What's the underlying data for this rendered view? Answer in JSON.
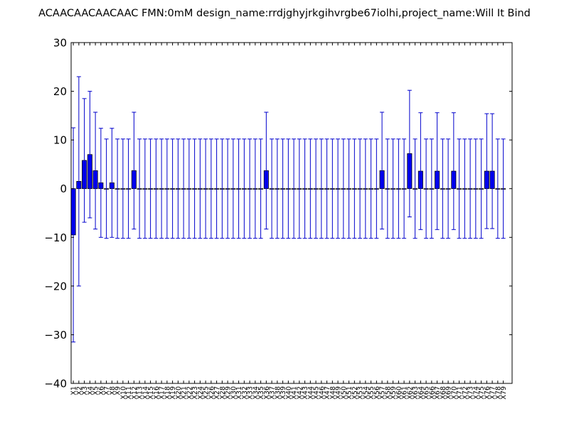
{
  "chart_data": {
    "type": "bar",
    "title": "ACAACAACAACAAC  FMN:0mM  design_name:rrdjghyjrkgihvrgbe67iolhi,project_name:Will It Bind",
    "xlabel": "",
    "ylabel": "",
    "ylim": [
      -40,
      30
    ],
    "yticks": [
      -40,
      -30,
      -20,
      -10,
      0,
      10,
      20,
      30
    ],
    "grid": false,
    "legend": "none",
    "colors": {
      "bar_fill": "#0000ff",
      "bar_edge": "#000000",
      "error": "#0000cc",
      "axes": "#000000"
    },
    "categories": [
      "X1",
      "X2",
      "X3",
      "X4",
      "X5",
      "X6",
      "X7",
      "X8",
      "X9",
      "X10",
      "X11",
      "X12",
      "X13",
      "X14",
      "X15",
      "X16",
      "X17",
      "X18",
      "X19",
      "X20",
      "X21",
      "X22",
      "X23",
      "X24",
      "X25",
      "X26",
      "X27",
      "X28",
      "X29",
      "X30",
      "X31",
      "X32",
      "X33",
      "X34",
      "X35",
      "X36",
      "X37",
      "X38",
      "X39",
      "X40",
      "X41",
      "X42",
      "X43",
      "X44",
      "X45",
      "X46",
      "X47",
      "X48",
      "X49",
      "X50",
      "X51",
      "X52",
      "X53",
      "X54",
      "X55",
      "X56",
      "X57",
      "X58",
      "X59",
      "X60",
      "X61",
      "X62",
      "X63",
      "X64",
      "X65",
      "X66",
      "X67",
      "X68",
      "X69",
      "X70",
      "X71",
      "X72",
      "X73",
      "X74",
      "X75",
      "X76",
      "X77",
      "X78",
      "X79"
    ],
    "values": [
      -9.5,
      1.5,
      5.8,
      7.0,
      3.7,
      1.2,
      0,
      1.2,
      0,
      0,
      0,
      3.7,
      0,
      0,
      0,
      0,
      0,
      0,
      0,
      0,
      0,
      0,
      0,
      0,
      0,
      0,
      0,
      0,
      0,
      0,
      0,
      0,
      0,
      0,
      0,
      3.7,
      0,
      0,
      0,
      0,
      0,
      0,
      0,
      0,
      0,
      0,
      0,
      0,
      0,
      0,
      0,
      0,
      0,
      0,
      0,
      0,
      3.7,
      0,
      0,
      0,
      0,
      7.2,
      0,
      3.6,
      0,
      0,
      3.6,
      0,
      0,
      3.6,
      0,
      0,
      0,
      0,
      0,
      3.6,
      3.6,
      0,
      0
    ],
    "errors": [
      22,
      21.5,
      12.7,
      13,
      12,
      11.2,
      10.2,
      11.2,
      10.2,
      10.2,
      10.2,
      12,
      10.2,
      10.2,
      10.2,
      10.2,
      10.2,
      10.2,
      10.2,
      10.2,
      10.2,
      10.2,
      10.2,
      10.2,
      10.2,
      10.2,
      10.2,
      10.2,
      10.2,
      10.2,
      10.2,
      10.2,
      10.2,
      10.2,
      10.2,
      12,
      10.2,
      10.2,
      10.2,
      10.2,
      10.2,
      10.2,
      10.2,
      10.2,
      10.2,
      10.2,
      10.2,
      10.2,
      10.2,
      10.2,
      10.2,
      10.2,
      10.2,
      10.2,
      10.2,
      10.2,
      12,
      10.2,
      10.2,
      10.2,
      10.2,
      13,
      10.2,
      12,
      10.2,
      10.2,
      12,
      10.2,
      10.2,
      12,
      10.2,
      10.2,
      10.2,
      10.2,
      10.2,
      11.8,
      11.8,
      10.2,
      10.2
    ]
  }
}
